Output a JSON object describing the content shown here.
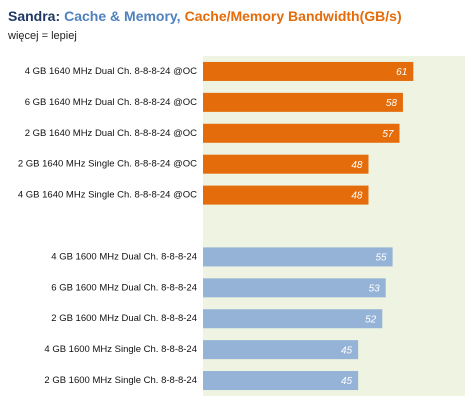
{
  "chart_data": {
    "type": "bar",
    "orientation": "horizontal",
    "title": [
      "Sandra:",
      "Cache & Memory,",
      "Cache/Memory Bandwidth(GB/s)"
    ],
    "title_colors": [
      "#1f3864",
      "#4f81bd",
      "#e46c0a"
    ],
    "subtitle": "więcej = lepiej",
    "categories": [
      "4 GB 1640 MHz Dual Ch. 8-8-8-24 @OC",
      "6 GB 1640 MHz Dual Ch. 8-8-8-24 @OC",
      "2 GB 1640 MHz Dual Ch. 8-8-8-24 @OC",
      "2 GB 1640 MHz Single Ch. 8-8-8-24 @OC",
      "4 GB 1640 MHz Single Ch. 8-8-8-24 @OC",
      null,
      "4 GB 1600 MHz Dual Ch. 8-8-8-24",
      "6 GB 1600 MHz Dual Ch. 8-8-8-24",
      "2 GB 1600 MHz Dual Ch. 8-8-8-24",
      "4 GB 1600 MHz Single Ch. 8-8-8-24",
      "2 GB 1600 MHz Single Ch. 8-8-8-24"
    ],
    "values": [
      61,
      58,
      57,
      48,
      48,
      null,
      55,
      53,
      52,
      45,
      45
    ],
    "colors": [
      "#e46c0a",
      "#e46c0a",
      "#e46c0a",
      "#e46c0a",
      "#e46c0a",
      null,
      "#95b3d7",
      "#95b3d7",
      "#95b3d7",
      "#95b3d7",
      "#95b3d7"
    ],
    "xlim": [
      0,
      76
    ],
    "plot_background": "#eef3e2"
  }
}
